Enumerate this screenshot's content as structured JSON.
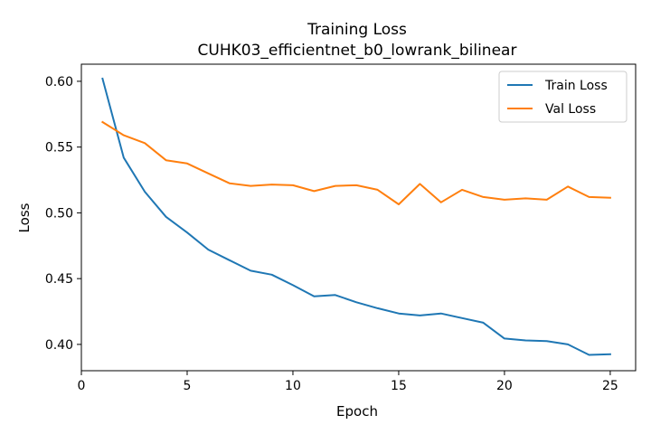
{
  "chart_data": {
    "type": "line",
    "title": "Training Loss",
    "subtitle": "CUHK03_efficientnet_b0_lowrank_bilinear",
    "xlabel": "Epoch",
    "ylabel": "Loss",
    "xlim": [
      0,
      26.2
    ],
    "ylim": [
      0.38,
      0.613
    ],
    "xticks": [
      0,
      5,
      10,
      15,
      20,
      25
    ],
    "yticks": [
      0.4,
      0.45,
      0.5,
      0.55,
      0.6
    ],
    "ytick_labels": [
      "0.40",
      "0.45",
      "0.50",
      "0.55",
      "0.60"
    ],
    "legend_position": "top-right",
    "grid": false,
    "x": [
      1,
      2,
      3,
      4,
      5,
      6,
      7,
      8,
      9,
      10,
      11,
      12,
      13,
      14,
      15,
      16,
      17,
      18,
      19,
      20,
      21,
      22,
      23,
      24,
      25
    ],
    "series": [
      {
        "name": "Train Loss",
        "color": "#1f77b4",
        "values": [
          0.602,
          0.542,
          0.516,
          0.497,
          0.485,
          0.472,
          0.464,
          0.456,
          0.453,
          0.445,
          0.4365,
          0.4375,
          0.432,
          0.4275,
          0.4235,
          0.422,
          0.4235,
          0.42,
          0.4165,
          0.4045,
          0.403,
          0.4025,
          0.4,
          0.392,
          0.3925
        ]
      },
      {
        "name": "Val Loss",
        "color": "#ff7f0e",
        "values": [
          0.569,
          0.559,
          0.553,
          0.54,
          0.5375,
          0.53,
          0.5225,
          0.5205,
          0.5215,
          0.521,
          0.5165,
          0.5205,
          0.521,
          0.5175,
          0.5065,
          0.522,
          0.508,
          0.5175,
          0.512,
          0.51,
          0.511,
          0.51,
          0.52,
          0.512,
          0.5115
        ]
      }
    ]
  }
}
